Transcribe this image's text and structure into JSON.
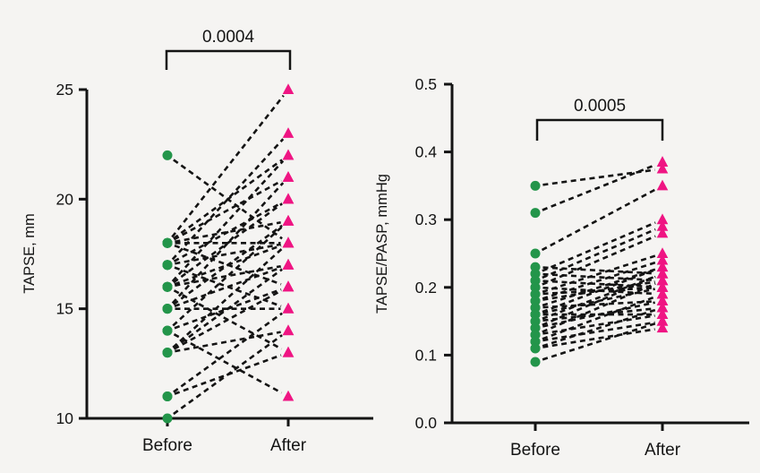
{
  "figure": {
    "description": "Paired before/after dot plots of TAPSE and TAPSE/PASP",
    "background": "#f5f4f2",
    "colors": {
      "before_marker": "#23954a",
      "after_marker": "#ef1583",
      "connector_line": "#141414",
      "axis": "#141414",
      "text": "#141414"
    }
  },
  "chart_data": [
    {
      "id": "tapse",
      "type": "paired-scatter",
      "title": "",
      "p_value": "0.0004",
      "ylabel": "TAPSE, mm",
      "xlabel": "",
      "categories": [
        "Before",
        "After"
      ],
      "ylim": [
        10,
        25
      ],
      "yticks": [
        {
          "value": 25,
          "label": "25"
        },
        {
          "value": 20,
          "label": "20"
        },
        {
          "value": 15,
          "label": "15"
        },
        {
          "value": 10,
          "label": "10"
        }
      ],
      "legend": "none",
      "grid": false,
      "marker_before": "circle",
      "marker_after": "triangle",
      "line_style": "dashed",
      "pairs": [
        [
          22,
          18
        ],
        [
          18,
          25
        ],
        [
          18,
          22
        ],
        [
          18,
          21
        ],
        [
          18,
          19
        ],
        [
          18,
          18
        ],
        [
          18,
          16
        ],
        [
          17,
          23
        ],
        [
          17,
          20
        ],
        [
          17,
          18
        ],
        [
          17,
          15
        ],
        [
          16,
          22
        ],
        [
          16,
          20
        ],
        [
          16,
          18
        ],
        [
          16,
          17
        ],
        [
          16,
          13
        ],
        [
          15,
          21
        ],
        [
          15,
          19
        ],
        [
          15,
          17
        ],
        [
          15,
          15
        ],
        [
          14,
          19
        ],
        [
          14,
          16
        ],
        [
          14,
          11
        ],
        [
          13,
          18
        ],
        [
          13,
          17
        ],
        [
          13,
          16
        ],
        [
          13,
          14
        ],
        [
          11,
          15
        ],
        [
          11,
          13
        ],
        [
          10,
          14
        ]
      ]
    },
    {
      "id": "tapse-pasp",
      "type": "paired-scatter",
      "title": "",
      "p_value": "0.0005",
      "ylabel": "TAPSE/PASP, mmHg",
      "xlabel": "",
      "categories": [
        "Before",
        "After"
      ],
      "ylim": [
        0.0,
        0.5
      ],
      "yticks": [
        {
          "value": 0.5,
          "label": "0.5"
        },
        {
          "value": 0.4,
          "label": "0.4"
        },
        {
          "value": 0.3,
          "label": "0.3"
        },
        {
          "value": 0.2,
          "label": "0.2"
        },
        {
          "value": 0.1,
          "label": "0.1"
        },
        {
          "value": 0.0,
          "label": "0.0"
        }
      ],
      "legend": "none",
      "grid": false,
      "marker_before": "circle",
      "marker_after": "triangle",
      "line_style": "dashed",
      "pairs": [
        [
          0.35,
          0.375
        ],
        [
          0.31,
          0.385
        ],
        [
          0.25,
          0.35
        ],
        [
          0.23,
          0.22
        ],
        [
          0.22,
          0.3
        ],
        [
          0.22,
          0.21
        ],
        [
          0.21,
          0.29
        ],
        [
          0.21,
          0.2
        ],
        [
          0.2,
          0.28
        ],
        [
          0.2,
          0.19
        ],
        [
          0.19,
          0.25
        ],
        [
          0.19,
          0.2
        ],
        [
          0.18,
          0.24
        ],
        [
          0.18,
          0.21
        ],
        [
          0.17,
          0.23
        ],
        [
          0.17,
          0.18
        ],
        [
          0.16,
          0.23
        ],
        [
          0.16,
          0.2
        ],
        [
          0.16,
          0.16
        ],
        [
          0.15,
          0.22
        ],
        [
          0.15,
          0.17
        ],
        [
          0.14,
          0.22
        ],
        [
          0.14,
          0.18
        ],
        [
          0.13,
          0.21
        ],
        [
          0.13,
          0.16
        ],
        [
          0.12,
          0.19
        ],
        [
          0.12,
          0.15
        ],
        [
          0.11,
          0.17
        ],
        [
          0.11,
          0.14
        ],
        [
          0.09,
          0.15
        ]
      ]
    }
  ]
}
